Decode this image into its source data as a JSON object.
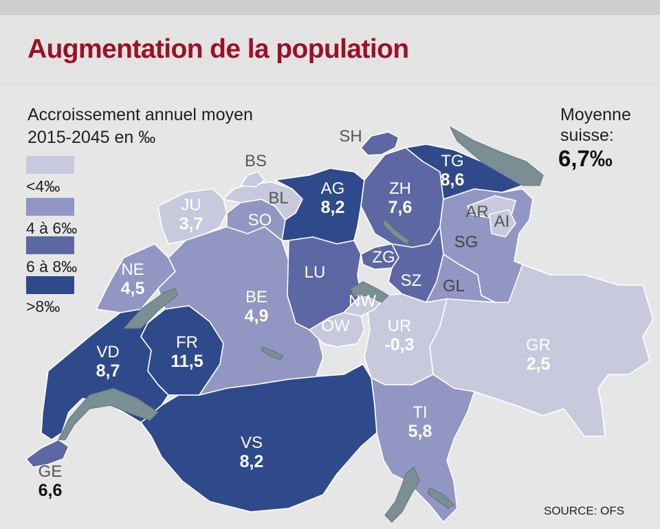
{
  "title": "Augmentation de la population",
  "subtitle": [
    "Accroissement annuel moyen",
    "2015-2045 en ‰"
  ],
  "legend": [
    {
      "label": "<4‰",
      "color": "#c8c9dd"
    },
    {
      "label": "4 à 6‰",
      "color": "#9196c2"
    },
    {
      "label": "6 à 8‰",
      "color": "#5d67a3"
    },
    {
      "label": ">8‰",
      "color": "#2f4a8a"
    }
  ],
  "average": {
    "label_line1": "Moyenne",
    "label_line2": "suisse:",
    "value": "6,7‰"
  },
  "source": "SOURCE: OFS",
  "lake_color": "#7a8f93",
  "cantons": [
    {
      "code": "SH",
      "value": null
    },
    {
      "code": "BS",
      "value": null
    },
    {
      "code": "BL",
      "value": null
    },
    {
      "code": "JU",
      "value": "3,7"
    },
    {
      "code": "SO",
      "value": null
    },
    {
      "code": "AG",
      "value": "8,2"
    },
    {
      "code": "ZH",
      "value": "7,6"
    },
    {
      "code": "TG",
      "value": "8,6"
    },
    {
      "code": "AR",
      "value": null
    },
    {
      "code": "AI",
      "value": null
    },
    {
      "code": "SG",
      "value": null
    },
    {
      "code": "NE",
      "value": "4,5"
    },
    {
      "code": "ZG",
      "value": null
    },
    {
      "code": "LU",
      "value": null
    },
    {
      "code": "SZ",
      "value": null
    },
    {
      "code": "GL",
      "value": null
    },
    {
      "code": "BE",
      "value": "4,9"
    },
    {
      "code": "NW",
      "value": null
    },
    {
      "code": "OW",
      "value": null
    },
    {
      "code": "UR",
      "value": "-0,3"
    },
    {
      "code": "VD",
      "value": "8,7"
    },
    {
      "code": "FR",
      "value": "11,5"
    },
    {
      "code": "GR",
      "value": "2,5"
    },
    {
      "code": "TI",
      "value": "5,8"
    },
    {
      "code": "VS",
      "value": "8,2"
    },
    {
      "code": "GE",
      "value": "6,6"
    }
  ]
}
